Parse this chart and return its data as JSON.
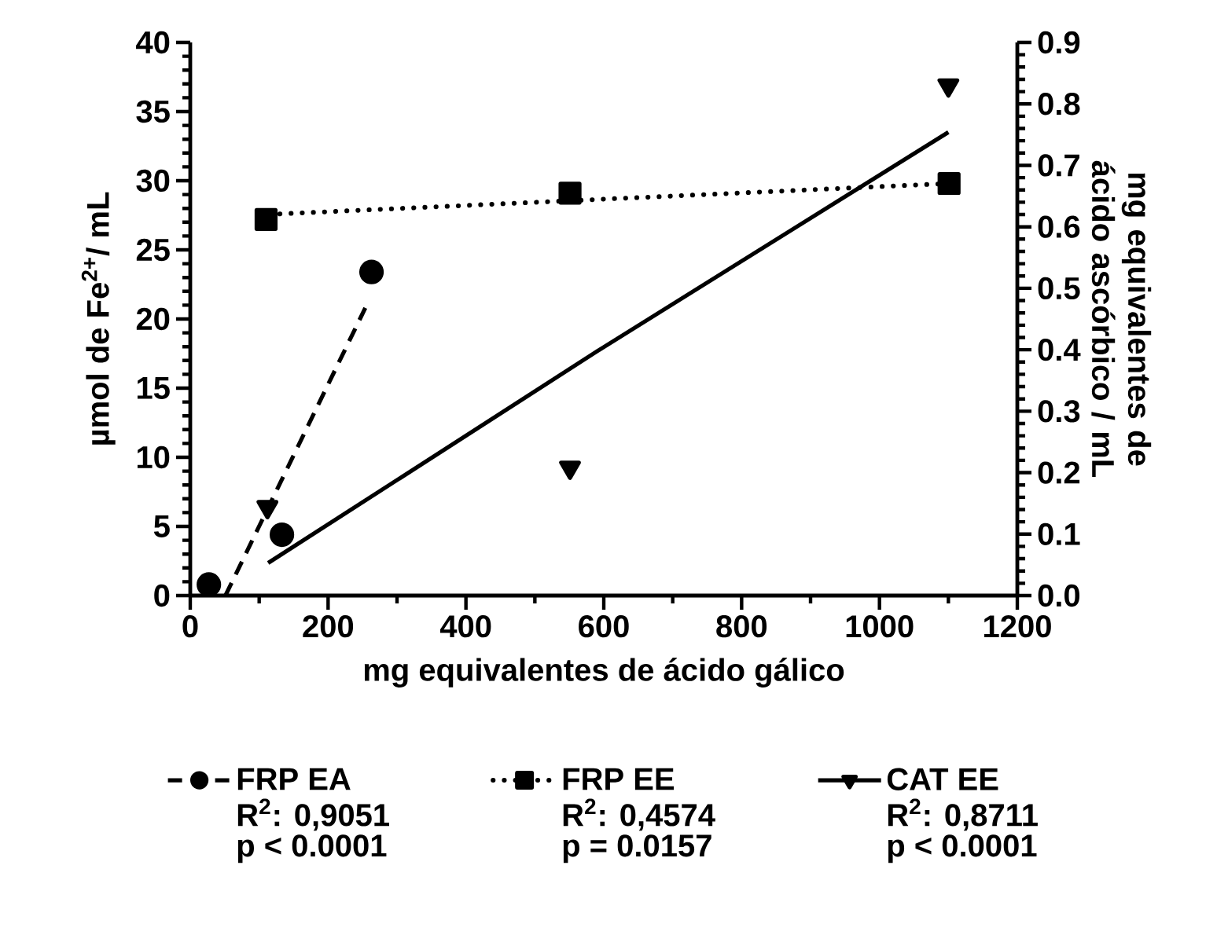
{
  "chart_data": {
    "type": "scatter",
    "xlabel": "mg equivalentes de ácido gálico",
    "ylabel": "µmol de Fe$^{2+}$/ mL",
    "y2label": "mg equivalentes de ácido ascórbico / mL",
    "xlim": [
      0,
      1200
    ],
    "xticks": [
      0,
      200,
      400,
      600,
      800,
      1000,
      1200
    ],
    "ylim": [
      0,
      40
    ],
    "yticks": [
      0,
      5,
      10,
      15,
      20,
      25,
      30,
      35,
      40
    ],
    "y2lim": [
      0.0,
      0.9
    ],
    "y2ticks": [
      {
        "value": 0,
        "label": "0.0"
      },
      0.1,
      0.2,
      0.3,
      0.4,
      0.5,
      0.6,
      0.7,
      0.8,
      0.9
    ],
    "legend": "bottom",
    "series": [
      {
        "name": "FRP EA",
        "marker": "circle",
        "color": "#000000",
        "x": [
          27,
          133,
          263
        ],
        "values": [
          0.8,
          4.4,
          23.4
        ]
      },
      {
        "type": "line",
        "line_style": "dashed",
        "color": "#000000",
        "x": [
          51,
          254
        ],
        "values": [
          0,
          20.8
        ]
      },
      {
        "name": "FRP EE",
        "marker": "square",
        "color": "#000000",
        "x": [
          110,
          551,
          1101
        ],
        "values": [
          27.2,
          29.1,
          29.8
        ]
      },
      {
        "type": "line",
        "line_style": "dotted",
        "color": "#000000",
        "x": [
          130,
          1100
        ],
        "values": [
          27.6,
          29.8
        ]
      },
      {
        "name": "CAT EE",
        "marker": "triangle",
        "axis": "y2",
        "color": "#000000",
        "x": [
          112,
          551,
          1100
        ],
        "values": [
          0.144,
          0.208,
          0.83
        ]
      },
      {
        "type": "line",
        "line_style": "solid",
        "axis": "y2",
        "color": "#000000",
        "x": [
          113,
          591,
          1100
        ],
        "values": [
          0.053,
          0.398,
          0.754
        ]
      }
    ],
    "annotations": [
      "R$^{2}$: 0,9051",
      "p < 0.0001",
      "R$^{2}$: 0,4574",
      "p = 0.0157",
      "R$^{2}$: 0,8711",
      "p < 0.0001"
    ]
  }
}
